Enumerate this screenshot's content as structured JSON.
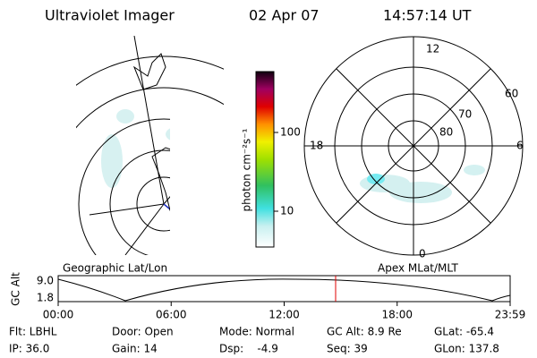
{
  "header": {
    "instrument": "Ultraviolet Imager",
    "date": "02 Apr 07",
    "time": "14:57:14 UT"
  },
  "geo_label": "Geographic Lat/Lon",
  "colorbar": {
    "unit": "photon cm⁻²s⁻¹",
    "ticks": [
      "100",
      "10"
    ]
  },
  "polar": {
    "mlt_labels": [
      "12",
      "18",
      "6",
      "0"
    ],
    "mlat_labels": [
      "60",
      "70",
      "80"
    ]
  },
  "apex_label": "Apex MLat/MLT",
  "timeline": {
    "axis_label": "GC Alt",
    "y_ticks": [
      "9.0",
      "1.8"
    ],
    "x_ticks": [
      "00:00",
      "06:00",
      "12:00",
      "18:00",
      "23:59"
    ]
  },
  "info": [
    [
      "Flt: LBHL",
      "Door: Open",
      "Mode: Normal",
      "GC Alt: 8.9 Re",
      "GLat: -65.4"
    ],
    [
      "IP: 36.0",
      "Gain: 14",
      "Dsp:    -4.9",
      "Seq: 39",
      "GLon: 137.8"
    ]
  ]
}
